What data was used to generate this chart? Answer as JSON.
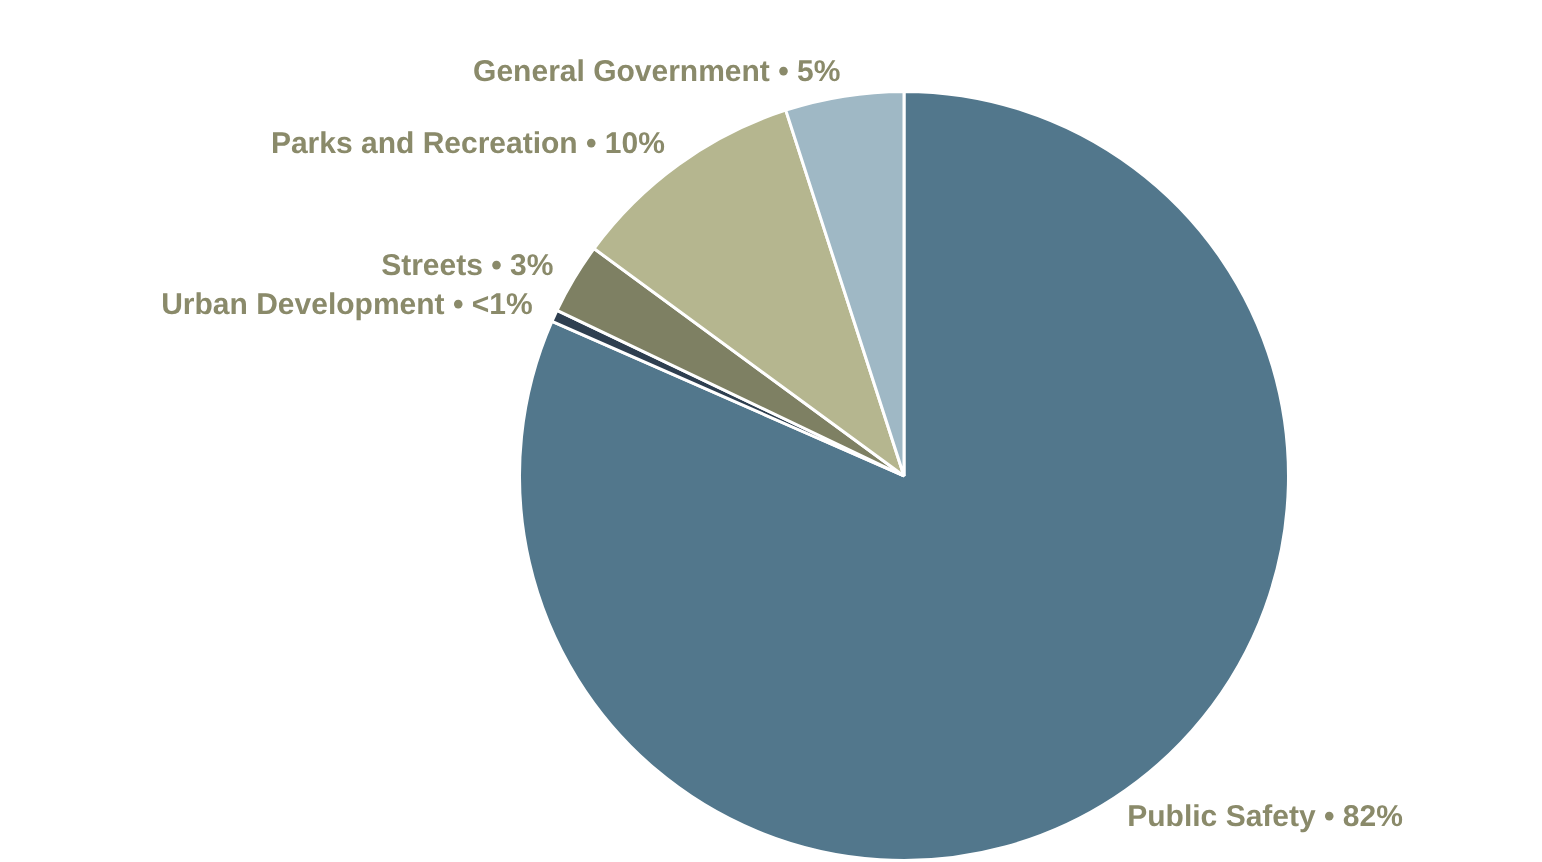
{
  "chart_data": {
    "type": "pie",
    "categories": [
      "Public Safety",
      "Urban Development",
      "Streets",
      "Parks and Recreation",
      "General Government"
    ],
    "values": [
      82,
      0.5,
      3,
      10,
      5
    ],
    "value_labels": [
      "• 82%",
      "• <1%",
      "• 3%",
      "• 10%",
      "• 5%"
    ],
    "colors": [
      "#52778c",
      "#2e3f50",
      "#7e8063",
      "#b5b68f",
      "#9fb8c5"
    ],
    "legend": false
  }
}
